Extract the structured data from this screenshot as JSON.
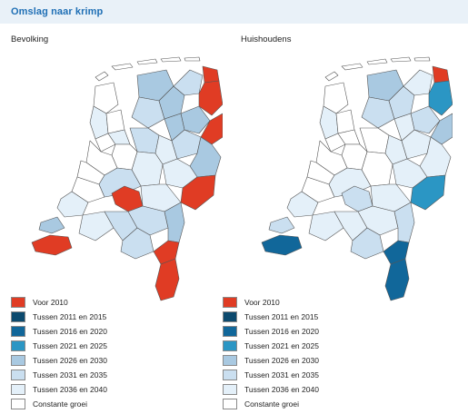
{
  "header": {
    "title": "Omslag naar krimp"
  },
  "panels": [
    {
      "label": "Bevolking"
    },
    {
      "label": "Huishoudens"
    }
  ],
  "legend": [
    {
      "label": "Voor 2010",
      "color": "#e03c24"
    },
    {
      "label": "Tussen 2011 en 2015",
      "color": "#0c4a6e"
    },
    {
      "label": "Tussen 2016 en 2020",
      "color": "#11679a"
    },
    {
      "label": "Tussen 2021 en 2025",
      "color": "#2b96c4"
    },
    {
      "label": "Tussen 2026 en 2030",
      "color": "#a9c9e1"
    },
    {
      "label": "Tussen 2031 en 2035",
      "color": "#cadff0"
    },
    {
      "label": "Tussen 2036 en 2040",
      "color": "#e4f0f9"
    },
    {
      "label": "Constante groei",
      "color": "#ffffff"
    }
  ]
}
